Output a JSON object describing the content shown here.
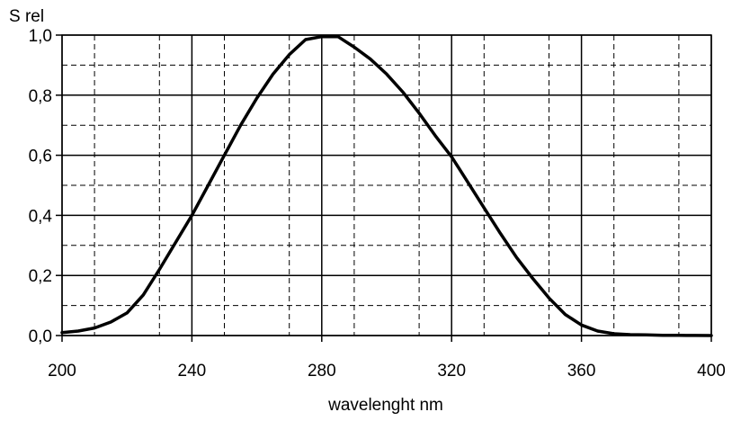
{
  "chart_data": {
    "type": "line",
    "title": "",
    "xlabel": "wavelenght nm",
    "ylabel": "S rel",
    "xlim": [
      200,
      400
    ],
    "ylim": [
      0,
      1.0
    ],
    "x_ticks": [
      "200",
      "240",
      "280",
      "320",
      "360",
      "400"
    ],
    "y_ticks": [
      "0,0",
      "0,2",
      "0,4",
      "0,6",
      "0,8",
      "1,0"
    ],
    "grid": {
      "major": true,
      "minor": true,
      "minor_style": "dashed"
    },
    "legend": "none",
    "series": [
      {
        "color": "#000000",
        "x": [
          200,
          205,
          210,
          215,
          220,
          225,
          230,
          235,
          240,
          245,
          250,
          255,
          260,
          265,
          270,
          275,
          280,
          285,
          290,
          295,
          300,
          305,
          310,
          315,
          320,
          325,
          330,
          335,
          340,
          345,
          350,
          355,
          360,
          365,
          370,
          375,
          380,
          385,
          390,
          395,
          400
        ],
        "y": [
          0.01,
          0.015,
          0.025,
          0.045,
          0.075,
          0.135,
          0.22,
          0.31,
          0.4,
          0.5,
          0.6,
          0.7,
          0.79,
          0.87,
          0.935,
          0.985,
          0.995,
          0.995,
          0.96,
          0.92,
          0.87,
          0.81,
          0.74,
          0.665,
          0.595,
          0.51,
          0.425,
          0.34,
          0.26,
          0.19,
          0.125,
          0.07,
          0.035,
          0.015,
          0.006,
          0.003,
          0.002,
          0.001,
          0.0005,
          0.0002,
          0.0
        ]
      }
    ]
  }
}
